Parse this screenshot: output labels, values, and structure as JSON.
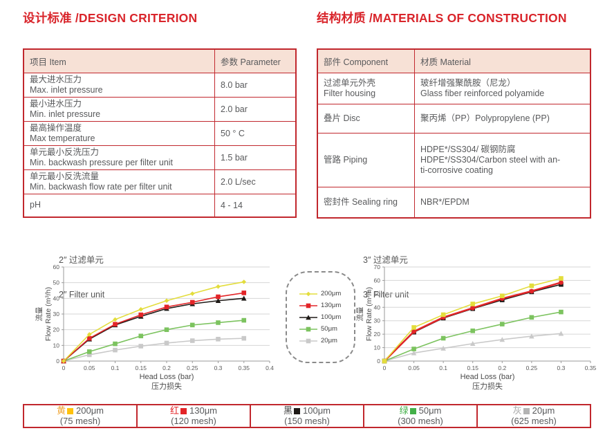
{
  "sections": {
    "design_title": "设计标准 /DESIGN CRITERION",
    "materials_title": "结构材质 /MATERIALS OF CONSTRUCTION"
  },
  "colors": {
    "accent_red": "#d9252b",
    "table_border": "#c1272d",
    "header_bg": "#f7e1d6",
    "body_text": "#58595b"
  },
  "design_table": {
    "headers": [
      "项目 Item",
      "参数 Parameter"
    ],
    "rows": [
      {
        "item_lines": [
          "最大进水压力",
          "Max. inlet pressure"
        ],
        "value": "8.0 bar"
      },
      {
        "item_lines": [
          "最小进水压力",
          "Min. inlet pressure"
        ],
        "value": "2.0 bar"
      },
      {
        "item_lines": [
          "最高操作温度",
          "Max temperature"
        ],
        "value": "50 ° C"
      },
      {
        "item_lines": [
          "单元最小反洗压力",
          "Min. backwash pressure per filter unit"
        ],
        "value": "1.5 bar"
      },
      {
        "item_lines": [
          "单元最小反洗流量",
          "Min. backwash flow rate per filter unit"
        ],
        "value": "2.0 L/sec"
      },
      {
        "item_lines": [
          "pH"
        ],
        "value": "4 - 14"
      }
    ]
  },
  "materials_table": {
    "headers": [
      "部件 Component",
      "材质 Material"
    ],
    "rows": [
      {
        "component_lines": [
          "过滤单元外壳",
          "Filter housing"
        ],
        "material_lines": [
          "玻纤增强聚酰胺（尼龙）",
          "Glass fiber reinforced polyamide"
        ]
      },
      {
        "component_lines": [
          "叠片 Disc"
        ],
        "material_lines": [
          "聚丙烯（PP）Polypropylene (PP)"
        ]
      },
      {
        "component_lines": [
          "管路 Piping"
        ],
        "material_lines": [
          "HDPE*/SS304/ 碳钢防腐",
          "HDPE*/SS304/Carbon steel with an-",
          "ti-corrosive coating"
        ]
      },
      {
        "component_lines": [
          "密封件 Sealing ring"
        ],
        "material_lines": [
          "NBR*/EPDM"
        ]
      }
    ]
  },
  "chart_data": [
    {
      "type": "line",
      "title_cn": "2″ 过滤单元",
      "title_en": "2″ Filter unit",
      "xlabel": "Head Loss (bar)",
      "xlabel_cn": "压力损失",
      "ylabel_cn": "流量",
      "ylabel": "Flow Rate (m³/h)",
      "xlim": [
        0,
        0.4
      ],
      "ylim": [
        0,
        60
      ],
      "xticks": [
        0,
        0.05,
        0.1,
        0.15,
        0.2,
        0.25,
        0.3,
        0.35,
        0.4
      ],
      "yticks": [
        0,
        10,
        20,
        30,
        40,
        50,
        60
      ],
      "grid": "horizontal",
      "x": [
        0,
        0.05,
        0.1,
        0.15,
        0.2,
        0.25,
        0.3,
        0.35
      ],
      "series": [
        {
          "name": "200μm",
          "color": "#e3dd3c",
          "marker": "diamond",
          "values": [
            0,
            17,
            26.5,
            33,
            38.5,
            43,
            47.5,
            50.5
          ]
        },
        {
          "name": "130μm",
          "color": "#e32528",
          "marker": "square",
          "values": [
            0,
            14.5,
            23.5,
            29.5,
            34.5,
            37.5,
            41,
            43.5
          ]
        },
        {
          "name": "100μm",
          "color": "#1f1a17",
          "marker": "triangle",
          "values": [
            0,
            14,
            23,
            28.5,
            33.5,
            36.5,
            38.5,
            40
          ]
        },
        {
          "name": "50μm",
          "color": "#7cc35f",
          "marker": "square",
          "values": [
            0,
            6,
            11,
            16,
            20,
            23,
            24.5,
            26
          ]
        },
        {
          "name": "20μm",
          "color": "#c9c9c9",
          "marker": "square",
          "values": [
            0,
            4,
            7,
            9.5,
            11.5,
            13,
            14,
            14.5
          ]
        }
      ]
    },
    {
      "type": "line",
      "title_cn": "3″ 过滤单元",
      "title_en": "3″ Filter unit",
      "xlabel": "Head Loss (bar)",
      "xlabel_cn": "压力损失",
      "ylabel_cn": "流量",
      "ylabel": "Flow Rate (m³/h)",
      "xlim": [
        0,
        0.35
      ],
      "ylim": [
        0,
        70
      ],
      "xticks": [
        0,
        0.05,
        0.1,
        0.15,
        0.2,
        0.25,
        0.3,
        0.35
      ],
      "yticks": [
        0,
        10,
        20,
        30,
        40,
        50,
        60,
        70
      ],
      "grid": "horizontal",
      "x": [
        0,
        0.05,
        0.1,
        0.15,
        0.2,
        0.25,
        0.3
      ],
      "series": [
        {
          "name": "200μm",
          "color": "#e3dd3c",
          "marker": "square",
          "values": [
            0,
            25,
            34.5,
            42.5,
            48.5,
            56,
            61.5
          ]
        },
        {
          "name": "130μm",
          "color": "#e32528",
          "marker": "circle",
          "width": 2.5,
          "values": [
            0,
            22,
            32.5,
            39.5,
            46.5,
            52,
            58.5
          ]
        },
        {
          "name": "100μm",
          "color": "#1f1a17",
          "marker": "square",
          "values": [
            0,
            21.5,
            32,
            39,
            45.5,
            51.5,
            57
          ]
        },
        {
          "name": "50μm",
          "color": "#7cc35f",
          "marker": "square",
          "values": [
            0,
            9,
            17,
            22.5,
            27.5,
            32.5,
            36.5
          ]
        },
        {
          "name": "20μm",
          "color": "#c9c9c9",
          "marker": "triangle",
          "values": [
            0,
            6,
            9.5,
            13,
            16,
            18.5,
            20.5
          ]
        }
      ]
    }
  ],
  "chart_legend": {
    "items": [
      {
        "label": "200μm",
        "color": "#e3dd3c",
        "marker": "diamond"
      },
      {
        "label": "130μm",
        "color": "#e32528",
        "marker": "square"
      },
      {
        "label": "100μm",
        "color": "#1f1a17",
        "marker": "triangle"
      },
      {
        "label": "50μm",
        "color": "#7cc35f",
        "marker": "square"
      },
      {
        "label": "20μm",
        "color": "#c9c9c9",
        "marker": "square"
      }
    ]
  },
  "mesh_legend": [
    {
      "color_cn": "黄",
      "char_color": "#f0a32e",
      "swatch_color": "#ffc20e",
      "size": "200μm",
      "mesh": "(75 mesh)"
    },
    {
      "color_cn": "红",
      "char_color": "#e32528",
      "swatch_color": "#e32528",
      "size": "130μm",
      "mesh": "(120 mesh)"
    },
    {
      "color_cn": "黑",
      "char_color": "#3f3f3f",
      "swatch_color": "#1f1a17",
      "size": "100μm",
      "mesh": "(150 mesh)"
    },
    {
      "color_cn": "绿",
      "char_color": "#43b049",
      "swatch_color": "#43b049",
      "size": "50μm",
      "mesh": "(300 mesh)"
    },
    {
      "color_cn": "灰",
      "char_color": "#a8a8a8",
      "swatch_color": "#b3b3b3",
      "size": "20μm",
      "mesh": "(625 mesh)"
    }
  ]
}
